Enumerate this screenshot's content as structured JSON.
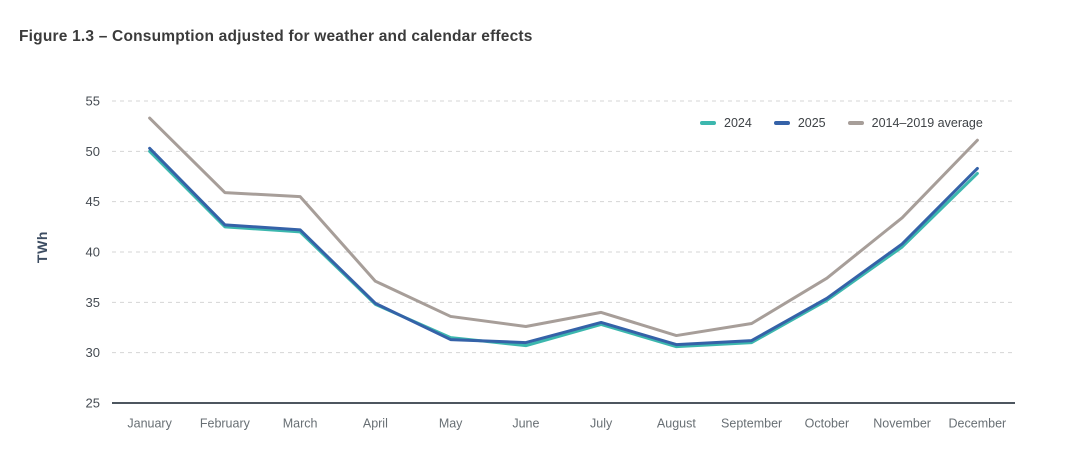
{
  "figure": {
    "title": "Figure 1.3 – Consumption adjusted for weather and calendar effects"
  },
  "chart_data": {
    "type": "line",
    "title": "Figure 1.3 – Consumption adjusted for weather and calendar effects",
    "ylabel": "TWh",
    "xlabel": "",
    "categories": [
      "January",
      "February",
      "March",
      "April",
      "May",
      "June",
      "July",
      "August",
      "September",
      "October",
      "November",
      "December"
    ],
    "yticks": [
      25,
      30,
      35,
      40,
      45,
      50,
      55
    ],
    "ylim": [
      25,
      55
    ],
    "grid": "horizontal-dashed",
    "legend_position": "top-right-inside",
    "series": [
      {
        "name": "2024",
        "color": "#3cb7ae",
        "values": [
          50.0,
          42.5,
          42.0,
          34.8,
          31.5,
          30.7,
          32.8,
          30.6,
          31.0,
          35.2,
          40.5,
          47.8
        ]
      },
      {
        "name": "2025",
        "color": "#3562a8",
        "values": [
          50.3,
          42.7,
          42.2,
          34.9,
          31.3,
          31.0,
          33.0,
          30.8,
          31.2,
          35.4,
          40.8,
          48.3
        ]
      },
      {
        "name": "2014–2019 average",
        "color": "#a79e99",
        "values": [
          53.3,
          45.9,
          45.5,
          37.1,
          33.6,
          32.6,
          34.0,
          31.7,
          32.9,
          37.4,
          43.4,
          51.1
        ]
      }
    ],
    "colors": {
      "axis_line": "#4d565f",
      "gridline": "#d5d5d5",
      "tick_label": "#454b52",
      "month_label": "#686f74",
      "legend_text": "#3f4347",
      "title_text": "#3b3b3b",
      "ylabel_text": "#3d4d62"
    }
  }
}
